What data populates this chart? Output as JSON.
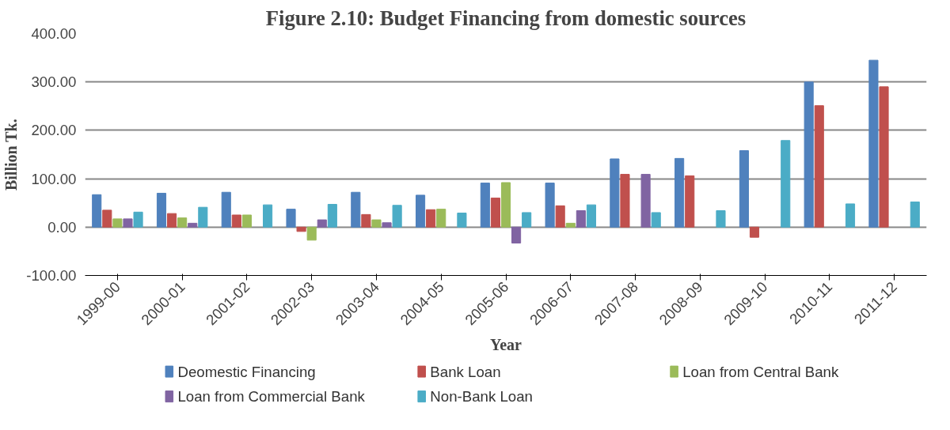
{
  "chart_data": {
    "type": "bar",
    "title": "Figure 2.10: Budget Financing from domestic sources",
    "xlabel": "Year",
    "ylabel": "Billion Tk.",
    "categories": [
      "1999-00",
      "2000-01",
      "2001-02",
      "2002-03",
      "2003-04",
      "2004-05",
      "2005-06",
      "2006-07",
      "2007-08",
      "2008-09",
      "2009-10",
      "2010-11",
      "2011-12"
    ],
    "series": [
      {
        "name": "Deomestic Financing",
        "color": "#4f81bd",
        "values": [
          67,
          70,
          72,
          37,
          72,
          66,
          91,
          91,
          141,
          142,
          158,
          300,
          345
        ]
      },
      {
        "name": "Bank Loan",
        "color": "#c0504d",
        "values": [
          35,
          28,
          25,
          -9,
          26,
          36,
          60,
          44,
          109,
          106,
          -21,
          251,
          290
        ]
      },
      {
        "name": "Loan from Central Bank",
        "color": "#9bbb59",
        "values": [
          17,
          19,
          25,
          -27,
          15,
          37,
          92,
          8,
          null,
          null,
          null,
          null,
          null
        ]
      },
      {
        "name": "Loan from Commercial Bank",
        "color": "#8064a2",
        "values": [
          17,
          8,
          null,
          15,
          9,
          null,
          -33,
          34,
          109,
          null,
          null,
          null,
          null
        ]
      },
      {
        "name": "Non-Bank Loan",
        "color": "#4bacc6",
        "values": [
          31,
          41,
          46,
          47,
          45,
          29,
          30,
          46,
          30,
          34,
          179,
          48,
          52
        ]
      }
    ],
    "ylim": [
      -100,
      400
    ],
    "yticks": [
      {
        "value": -100,
        "label": "-100.00"
      },
      {
        "value": 0,
        "label": "0.00"
      },
      {
        "value": 100,
        "label": "100.00"
      },
      {
        "value": 200,
        "label": "200.00"
      },
      {
        "value": 300,
        "label": "300.00"
      },
      {
        "value": 400,
        "label": "400.00"
      }
    ],
    "grid": "y",
    "legend": "bottom"
  }
}
